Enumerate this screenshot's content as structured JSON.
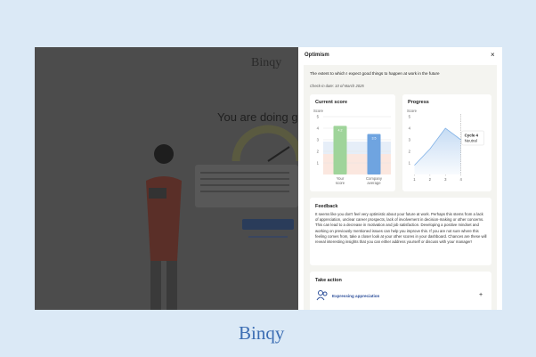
{
  "background": {
    "logo": "Binqy",
    "headline": "You are doing great"
  },
  "panel": {
    "title": "Optimism",
    "close": "×",
    "statement": "The extent to which I expect good things to happen at work in the future",
    "check_in": "Check-in date: 10 of March 2025",
    "current_score": {
      "title": "Current score",
      "y_label": "Score",
      "categories": [
        "Your score",
        "Company average"
      ],
      "values": [
        4.2,
        3.5
      ],
      "colors": [
        "#9fd49a",
        "#6fa4e0"
      ],
      "ylim": [
        0,
        5
      ],
      "yticks": [
        1,
        2,
        3,
        4,
        5
      ]
    },
    "progress": {
      "title": "Progress",
      "y_label": "Score",
      "x": [
        1,
        2,
        3,
        4
      ],
      "values": [
        0.8,
        2.2,
        4,
        3
      ],
      "color": "#7fb0e6",
      "xlim": [
        0.8,
        5
      ],
      "xticks": [
        1,
        2,
        3,
        4
      ],
      "ylim": [
        0,
        5
      ],
      "yticks": [
        1,
        2,
        3,
        4,
        5
      ],
      "tooltip": {
        "title": "Cycle 4",
        "label": "Neutral"
      }
    },
    "feedback": {
      "title": "Feedback",
      "text": "It seems like you don't feel very optimistic about your future at work. Perhaps this stems from a lack of appreciation, unclear career prospects, lack of involvement in decision-making or other concerns. This can lead to a decrease in motivation and job satisfaction. Developing a positive mindset and working on previously mentioned issues can help you improve this. If you are not sure where this feeling comes from, take a closer look at your other scores in your dashboard. Chances are these will reveal interesting insights that you can either address yourself or discuss with your manager!"
    },
    "take_action": {
      "title": "Take action",
      "item": "Expressing appreciation",
      "expand": "+"
    }
  },
  "logo": "Binqy"
}
